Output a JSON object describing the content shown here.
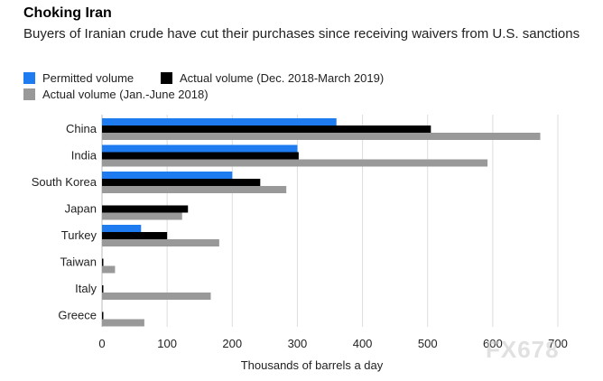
{
  "header": {
    "title": "Choking Iran",
    "subtitle": "Buyers of Iranian crude have cut their purchases since receiving waivers from U.S. sanctions"
  },
  "watermark": "FX678",
  "chart_data": {
    "type": "bar",
    "orientation": "horizontal",
    "categories": [
      "China",
      "India",
      "South Korea",
      "Japan",
      "Turkey",
      "Taiwan",
      "Italy",
      "Greece"
    ],
    "series": [
      {
        "name": "Permitted volume",
        "color": "#1f7cf0",
        "values": [
          360,
          300,
          200,
          0,
          60,
          0,
          0,
          0
        ]
      },
      {
        "name": "Actual volume (Dec. 2018-March 2019)",
        "color": "#000000",
        "values": [
          505,
          302,
          243,
          132,
          100,
          1,
          1,
          1
        ]
      },
      {
        "name": "Actual volume (Jan.-June 2018)",
        "color": "#999999",
        "values": [
          673,
          592,
          283,
          123,
          180,
          20,
          167,
          65
        ]
      }
    ],
    "xlabel": "Thousands of barrels a day",
    "xlim": [
      0,
      700
    ],
    "xticks": [
      0,
      100,
      200,
      300,
      400,
      500,
      600,
      700
    ],
    "grid": true
  }
}
